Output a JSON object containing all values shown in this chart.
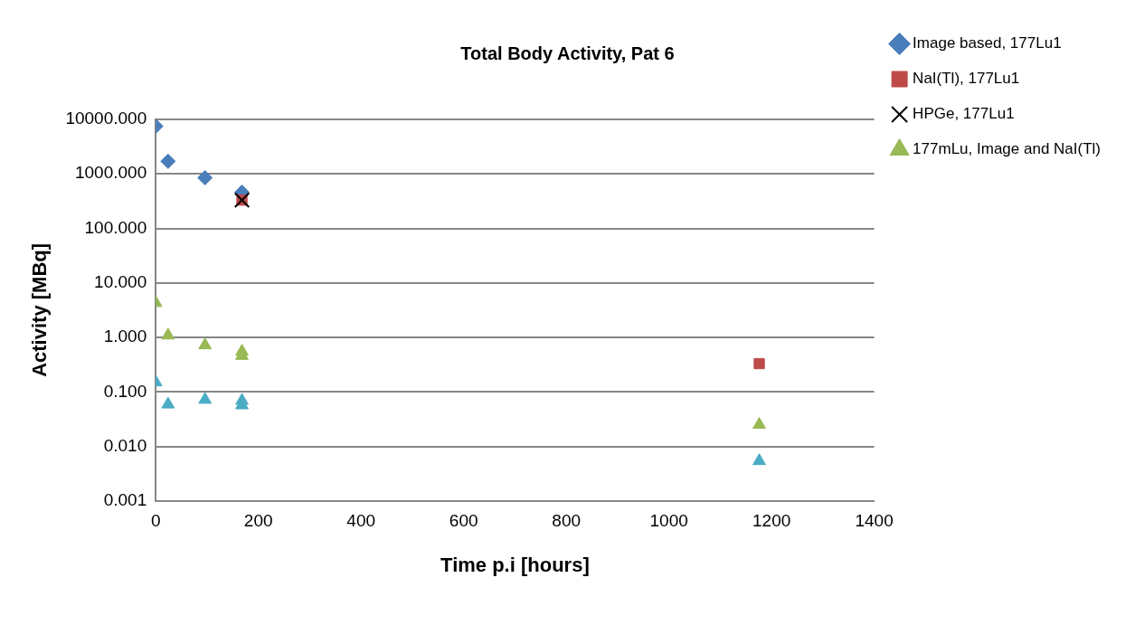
{
  "chart_data": {
    "type": "scatter",
    "title": "Total Body Activity, Pat 6",
    "xlabel": "Time p.i [hours]",
    "ylabel": "Activity [MBq]",
    "xlim": [
      0,
      1400
    ],
    "xticks": [
      0,
      200,
      400,
      600,
      800,
      1000,
      1200,
      1400
    ],
    "ylim": [
      0.001,
      10000
    ],
    "yticks": [
      {
        "value": 0.001,
        "label": "0.001"
      },
      {
        "value": 0.01,
        "label": "0.010"
      },
      {
        "value": 0.1,
        "label": "0.100"
      },
      {
        "value": 1,
        "label": "1.000"
      },
      {
        "value": 10,
        "label": "10.000"
      },
      {
        "value": 100,
        "label": "100.000"
      },
      {
        "value": 1000,
        "label": "1000.000"
      },
      {
        "value": 10000,
        "label": "10000.000"
      }
    ],
    "log": "y",
    "grid": "y",
    "legend": "top right",
    "series": [
      {
        "name": "Image based, 177Lu1",
        "color": "#4a7ebb",
        "marker": "diamond",
        "x": [
          0,
          24,
          96,
          168
        ],
        "values": [
          7500,
          1700,
          850,
          460
        ]
      },
      {
        "name": "NaI(Tl), 177Lu1",
        "color": "#be4b48",
        "marker": "square",
        "x": [
          168,
          1176
        ],
        "values": [
          330,
          0.33
        ]
      },
      {
        "name": "HPGe, 177Lu1",
        "color": "#000000",
        "marker": "cross",
        "x": [
          168
        ],
        "values": [
          330
        ]
      },
      {
        "name": "177mLu, Image and NaI(Tl)",
        "color": "#98b954",
        "marker": "triangle",
        "x": [
          0,
          24,
          96,
          168,
          168,
          1176
        ],
        "values": [
          4.3,
          1.09,
          0.72,
          0.55,
          0.46,
          0.025
        ]
      },
      {
        "color": "#4bacc6",
        "marker": "triangle",
        "x": [
          0,
          24,
          96,
          168,
          168,
          1176
        ],
        "values": [
          0.15,
          0.059,
          0.072,
          0.069,
          0.057,
          0.0054
        ]
      }
    ]
  }
}
